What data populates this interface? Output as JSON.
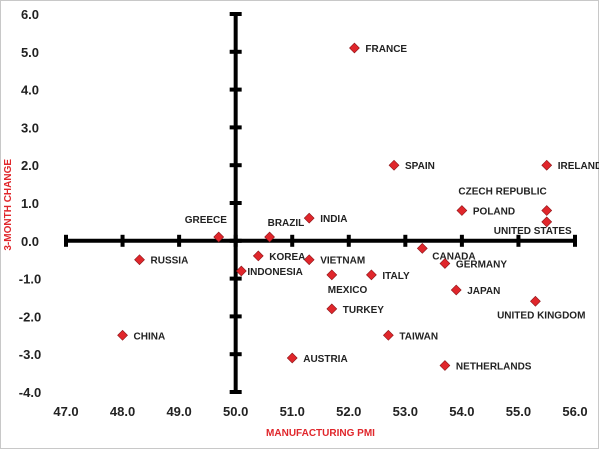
{
  "chart_data": {
    "type": "scatter",
    "title": "",
    "xlabel": "MANUFACTURING PMI",
    "ylabel": "3-MONTH CHANGE",
    "xlim": [
      47.0,
      56.0
    ],
    "ylim": [
      -4.0,
      6.0
    ],
    "x_ticks": [
      "47.0",
      "48.0",
      "49.0",
      "50.0",
      "51.0",
      "52.0",
      "53.0",
      "54.0",
      "55.0",
      "56.0"
    ],
    "y_ticks": [
      "6.0",
      "5.0",
      "4.0",
      "3.0",
      "2.0",
      "1.0",
      "0.0",
      "-1.0",
      "-2.0",
      "-3.0",
      "-4.0"
    ],
    "axis_cross": {
      "x": 50.0,
      "y": 0.0
    },
    "grid": false,
    "marker_color": "#e0262b",
    "axis_color": "#000000",
    "label_color": "#e0262b",
    "points": [
      {
        "label": "FRANCE",
        "x": 52.1,
        "y": 5.1
      },
      {
        "label": "SPAIN",
        "x": 52.8,
        "y": 2.0
      },
      {
        "label": "IRELAND",
        "x": 55.5,
        "y": 2.0
      },
      {
        "label": "CZECH REPUBLIC",
        "x": 55.5,
        "y": 0.8
      },
      {
        "label": "UNITED STATES",
        "x": 55.5,
        "y": 0.5
      },
      {
        "label": "POLAND",
        "x": 54.0,
        "y": 0.8
      },
      {
        "label": "INDIA",
        "x": 51.3,
        "y": 0.6
      },
      {
        "label": "GREECE",
        "x": 49.7,
        "y": 0.1
      },
      {
        "label": "BRAZIL",
        "x": 50.6,
        "y": 0.1
      },
      {
        "label": "CANADA",
        "x": 53.3,
        "y": -0.2
      },
      {
        "label": "RUSSIA",
        "x": 48.3,
        "y": -0.5
      },
      {
        "label": "KOREA",
        "x": 50.4,
        "y": -0.4
      },
      {
        "label": "VIETNAM",
        "x": 51.3,
        "y": -0.5
      },
      {
        "label": "INDONESIA",
        "x": 50.1,
        "y": -0.8
      },
      {
        "label": "MEXICO",
        "x": 51.7,
        "y": -0.9
      },
      {
        "label": "ITALY",
        "x": 52.4,
        "y": -0.9
      },
      {
        "label": "GERMANY",
        "x": 53.7,
        "y": -0.6
      },
      {
        "label": "JAPAN",
        "x": 53.9,
        "y": -1.3
      },
      {
        "label": "UNITED KINGDOM",
        "x": 55.3,
        "y": -1.6
      },
      {
        "label": "TURKEY",
        "x": 51.7,
        "y": -1.8
      },
      {
        "label": "CHINA",
        "x": 48.0,
        "y": -2.5
      },
      {
        "label": "TAIWAN",
        "x": 52.7,
        "y": -2.5
      },
      {
        "label": "AUSTRIA",
        "x": 51.0,
        "y": -3.1
      },
      {
        "label": "NETHERLANDS",
        "x": 53.7,
        "y": -3.3
      }
    ]
  }
}
